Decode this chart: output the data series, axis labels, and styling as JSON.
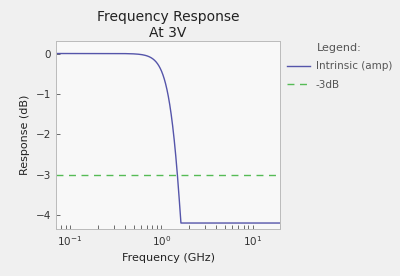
{
  "title_line1": "Frequency Response",
  "title_line2": "At 3V",
  "xlabel": "Frequency (GHz)",
  "ylabel": "Response (dB)",
  "xlim_log": [
    0.07,
    20
  ],
  "ylim": [
    -4.35,
    0.3
  ],
  "yticks": [
    0,
    -1,
    -2,
    -3,
    -4
  ],
  "legend_title": "Legend:",
  "legend_label_intrinsic": "Intrinsic (amp)",
  "legend_label_3db": "-3dB",
  "line_color": "#5555aa",
  "dashed_color": "#55bb55",
  "dashed_value": -3.0,
  "f3db": 1.5,
  "order": 2.8,
  "background_color": "#f0f0f0",
  "plot_bg_color": "#f8f8f8",
  "title_fontsize": 10,
  "label_fontsize": 8,
  "tick_fontsize": 7.5,
  "figsize": [
    4.0,
    2.76
  ],
  "dpi": 100
}
